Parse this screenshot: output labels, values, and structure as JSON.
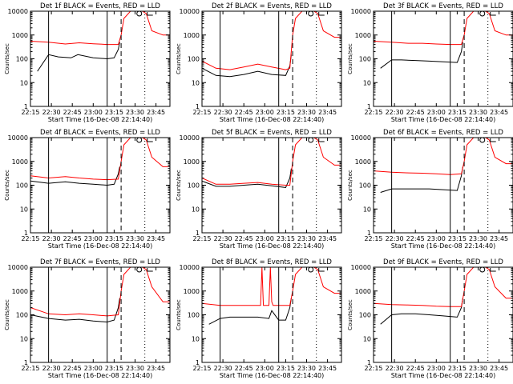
{
  "page": {
    "background": "#ffffff",
    "colors": {
      "axis": "#000000",
      "events": "#000000",
      "lld": "#ff0000"
    }
  },
  "chart_data": [
    {
      "type": "line",
      "title": "Det 1f BLACK = Events, RED = LLD",
      "xlabel": "Start Time (16-Dec-08 22:14:40)",
      "ylabel": "Counts/sec",
      "yscale": "log",
      "ylim": [
        1,
        10000
      ],
      "xlim": [
        "22:15",
        "23:55"
      ],
      "x_ticks": [
        "22:15",
        "22:30",
        "22:45",
        "23:00",
        "23:15",
        "23:30",
        "23:45"
      ],
      "y_ticks": [
        "1",
        "10",
        "100",
        "1000",
        "10000"
      ],
      "markers": [
        {
          "time": "22:28",
          "style": "solid"
        },
        {
          "time": "23:10",
          "style": "solid"
        },
        {
          "time": "23:20",
          "style": "dashed"
        },
        {
          "time": "23:37",
          "style": "dotted"
        }
      ],
      "series": [
        {
          "color": "#000000",
          "x": [
            "22:20",
            "22:28",
            "22:35",
            "22:44",
            "22:49",
            "23:00",
            "23:10",
            "23:15",
            "23:18",
            "23:19"
          ],
          "y": [
            30,
            150,
            120,
            110,
            150,
            110,
            100,
            110,
            250,
            500
          ]
        },
        {
          "color": "#ff0000",
          "x": [
            "22:15",
            "22:28",
            "22:40",
            "22:50",
            "23:00",
            "23:10",
            "23:18",
            "23:20",
            "23:22",
            "23:28",
            "23:33",
            "23:38",
            "23:42",
            "23:50",
            "23:55"
          ],
          "y": [
            550,
            500,
            420,
            470,
            430,
            400,
            400,
            1000,
            5000,
            12000,
            12000,
            8000,
            1500,
            1000,
            1000
          ]
        }
      ]
    },
    {
      "type": "line",
      "title": "Det 2f BLACK = Events, RED = LLD",
      "xlabel": "Start Time (16-Dec-08 22:14:40)",
      "ylabel": "Counts/sec",
      "yscale": "log",
      "ylim": [
        1,
        10000
      ],
      "xlim": [
        "22:15",
        "23:55"
      ],
      "x_ticks": [
        "22:15",
        "22:30",
        "22:45",
        "23:00",
        "23:15",
        "23:30",
        "23:45"
      ],
      "y_ticks": [
        "1",
        "10",
        "100",
        "1000",
        "10000"
      ],
      "markers": [
        {
          "time": "22:28",
          "style": "solid"
        },
        {
          "time": "23:10",
          "style": "solid"
        },
        {
          "time": "23:20",
          "style": "dashed"
        },
        {
          "time": "23:37",
          "style": "dotted"
        }
      ],
      "series": [
        {
          "color": "#000000",
          "x": [
            "22:15",
            "22:25",
            "22:35",
            "22:45",
            "22:55",
            "23:05",
            "23:15",
            "23:18",
            "23:19"
          ],
          "y": [
            40,
            20,
            18,
            22,
            30,
            22,
            20,
            50,
            150
          ]
        },
        {
          "color": "#ff0000",
          "x": [
            "22:15",
            "22:25",
            "22:35",
            "22:45",
            "22:55",
            "23:05",
            "23:15",
            "23:18",
            "23:20",
            "23:22",
            "23:28",
            "23:33",
            "23:38",
            "23:42",
            "23:50",
            "23:55"
          ],
          "y": [
            80,
            40,
            35,
            45,
            60,
            45,
            35,
            40,
            1000,
            5000,
            12000,
            12000,
            8000,
            1500,
            800,
            800
          ]
        }
      ]
    },
    {
      "type": "line",
      "title": "Det 3f BLACK = Events, RED = LLD",
      "xlabel": "Start Time (16-Dec-08 22:14:40)",
      "ylabel": "Counts/sec",
      "yscale": "log",
      "ylim": [
        1,
        10000
      ],
      "xlim": [
        "22:15",
        "23:55"
      ],
      "x_ticks": [
        "22:15",
        "22:30",
        "22:45",
        "23:00",
        "23:15",
        "23:30",
        "23:45"
      ],
      "y_ticks": [
        "1",
        "10",
        "100",
        "1000",
        "10000"
      ],
      "markers": [
        {
          "time": "22:28",
          "style": "solid"
        },
        {
          "time": "23:10",
          "style": "solid"
        },
        {
          "time": "23:20",
          "style": "dashed"
        },
        {
          "time": "23:37",
          "style": "dotted"
        }
      ],
      "series": [
        {
          "color": "#000000",
          "x": [
            "22:20",
            "22:28",
            "22:35",
            "22:45",
            "22:55",
            "23:05",
            "23:15",
            "23:18",
            "23:19"
          ],
          "y": [
            40,
            90,
            90,
            85,
            80,
            75,
            70,
            200,
            500
          ]
        },
        {
          "color": "#ff0000",
          "x": [
            "22:15",
            "22:28",
            "22:40",
            "22:50",
            "23:00",
            "23:10",
            "23:18",
            "23:20",
            "23:22",
            "23:28",
            "23:33",
            "23:38",
            "23:42",
            "23:50",
            "23:55"
          ],
          "y": [
            550,
            500,
            450,
            450,
            420,
            400,
            400,
            1000,
            5000,
            12000,
            12000,
            8000,
            1500,
            1000,
            1000
          ]
        }
      ]
    },
    {
      "type": "line",
      "title": "Det 4f BLACK = Events, RED = LLD",
      "xlabel": "Start Time (16-Dec-08 22:14:40)",
      "ylabel": "Counts/sec",
      "yscale": "log",
      "ylim": [
        1,
        10000
      ],
      "xlim": [
        "22:15",
        "23:55"
      ],
      "x_ticks": [
        "22:15",
        "22:30",
        "22:45",
        "23:00",
        "23:15",
        "23:30",
        "23:45"
      ],
      "y_ticks": [
        "1",
        "10",
        "100",
        "1000",
        "10000"
      ],
      "markers": [
        {
          "time": "22:28",
          "style": "solid"
        },
        {
          "time": "23:10",
          "style": "solid"
        },
        {
          "time": "23:20",
          "style": "dashed"
        },
        {
          "time": "23:37",
          "style": "dotted"
        }
      ],
      "series": [
        {
          "color": "#000000",
          "x": [
            "22:15",
            "22:28",
            "22:40",
            "22:50",
            "23:00",
            "23:10",
            "23:15",
            "23:18",
            "23:19"
          ],
          "y": [
            150,
            120,
            140,
            120,
            110,
            100,
            110,
            300,
            600
          ]
        },
        {
          "color": "#ff0000",
          "x": [
            "22:15",
            "22:28",
            "22:40",
            "22:50",
            "23:00",
            "23:10",
            "23:18",
            "23:20",
            "23:22",
            "23:28",
            "23:33",
            "23:38",
            "23:42",
            "23:50",
            "23:55"
          ],
          "y": [
            250,
            200,
            230,
            200,
            180,
            170,
            180,
            1000,
            5000,
            12000,
            12000,
            8000,
            1500,
            600,
            600
          ]
        }
      ]
    },
    {
      "type": "line",
      "title": "Det 5f BLACK = Events, RED = LLD",
      "xlabel": "Start Time (16-Dec-08 22:14:40)",
      "ylabel": "Counts/sec",
      "yscale": "log",
      "ylim": [
        1,
        10000
      ],
      "xlim": [
        "22:15",
        "23:55"
      ],
      "x_ticks": [
        "22:15",
        "22:30",
        "22:45",
        "23:00",
        "23:15",
        "23:30",
        "23:45"
      ],
      "y_ticks": [
        "1",
        "10",
        "100",
        "1000",
        "10000"
      ],
      "markers": [
        {
          "time": "23:10",
          "style": "solid"
        },
        {
          "time": "23:20",
          "style": "dashed"
        },
        {
          "time": "23:37",
          "style": "dotted"
        }
      ],
      "series": [
        {
          "color": "#000000",
          "x": [
            "22:15",
            "22:25",
            "22:35",
            "22:45",
            "22:55",
            "23:05",
            "23:15",
            "23:18",
            "23:19"
          ],
          "y": [
            150,
            90,
            90,
            100,
            110,
            95,
            80,
            200,
            500
          ]
        },
        {
          "color": "#ff0000",
          "x": [
            "22:15",
            "22:25",
            "22:35",
            "22:45",
            "22:55",
            "23:05",
            "23:15",
            "23:18",
            "23:20",
            "23:22",
            "23:28",
            "23:33",
            "23:38",
            "23:42",
            "23:50",
            "23:55"
          ],
          "y": [
            200,
            110,
            110,
            120,
            130,
            110,
            100,
            100,
            1000,
            5000,
            12000,
            12000,
            8000,
            1500,
            700,
            700
          ]
        }
      ]
    },
    {
      "type": "line",
      "title": "Det 6f BLACK = Events, RED = LLD",
      "xlabel": "Start Time (16-Dec-08 22:14:40)",
      "ylabel": "Counts/sec",
      "yscale": "log",
      "ylim": [
        1,
        10000
      ],
      "xlim": [
        "22:15",
        "23:55"
      ],
      "x_ticks": [
        "22:15",
        "22:30",
        "22:45",
        "23:00",
        "23:15",
        "23:30",
        "23:45"
      ],
      "y_ticks": [
        "1",
        "10",
        "100",
        "1000",
        "10000"
      ],
      "markers": [
        {
          "time": "22:28",
          "style": "solid"
        },
        {
          "time": "23:10",
          "style": "solid"
        },
        {
          "time": "23:20",
          "style": "dashed"
        },
        {
          "time": "23:37",
          "style": "dotted"
        }
      ],
      "series": [
        {
          "color": "#000000",
          "x": [
            "22:20",
            "22:28",
            "22:35",
            "22:45",
            "22:55",
            "23:05",
            "23:15",
            "23:18",
            "23:19"
          ],
          "y": [
            50,
            70,
            70,
            70,
            70,
            65,
            60,
            250,
            600
          ]
        },
        {
          "color": "#ff0000",
          "x": [
            "22:15",
            "22:28",
            "22:40",
            "22:50",
            "23:00",
            "23:10",
            "23:18",
            "23:20",
            "23:22",
            "23:28",
            "23:33",
            "23:38",
            "23:42",
            "23:50",
            "23:55"
          ],
          "y": [
            400,
            350,
            330,
            320,
            300,
            280,
            300,
            1000,
            5000,
            12000,
            12000,
            8000,
            1500,
            800,
            800
          ]
        }
      ]
    },
    {
      "type": "line",
      "title": "Det 7f BLACK = Events, RED = LLD",
      "xlabel": "Start Time (16-Dec-08 22:14:40)",
      "ylabel": "Counts/sec",
      "yscale": "log",
      "ylim": [
        1,
        10000
      ],
      "xlim": [
        "22:15",
        "23:55"
      ],
      "x_ticks": [
        "22:15",
        "22:30",
        "22:45",
        "23:00",
        "23:15",
        "23:30",
        "23:45"
      ],
      "y_ticks": [
        "1",
        "10",
        "100",
        "1000",
        "10000"
      ],
      "markers": [
        {
          "time": "22:28",
          "style": "solid"
        },
        {
          "time": "23:10",
          "style": "solid"
        },
        {
          "time": "23:20",
          "style": "dashed"
        },
        {
          "time": "23:37",
          "style": "dotted"
        }
      ],
      "series": [
        {
          "color": "#000000",
          "x": [
            "22:15",
            "22:28",
            "22:40",
            "22:50",
            "23:00",
            "23:10",
            "23:15",
            "23:18",
            "23:19"
          ],
          "y": [
            100,
            70,
            60,
            65,
            55,
            50,
            60,
            200,
            500
          ]
        },
        {
          "color": "#ff0000",
          "x": [
            "22:15",
            "22:28",
            "22:40",
            "22:50",
            "23:00",
            "23:10",
            "23:18",
            "23:20",
            "23:22",
            "23:28",
            "23:33",
            "23:38",
            "23:42",
            "23:50",
            "23:55"
          ],
          "y": [
            200,
            110,
            100,
            110,
            100,
            90,
            100,
            1000,
            5000,
            12000,
            12000,
            8000,
            1500,
            350,
            350
          ]
        }
      ]
    },
    {
      "type": "line",
      "title": "Det 8f BLACK = Events, RED = LLD",
      "xlabel": "Start Time (16-Dec-08 22:14:40)",
      "ylabel": "Counts/sec",
      "yscale": "log",
      "ylim": [
        1,
        10000
      ],
      "xlim": [
        "22:15",
        "23:55"
      ],
      "x_ticks": [
        "22:15",
        "22:30",
        "22:45",
        "23:00",
        "23:15",
        "23:30",
        "23:45"
      ],
      "y_ticks": [
        "1",
        "10",
        "100",
        "1000",
        "10000"
      ],
      "markers": [
        {
          "time": "22:28",
          "style": "solid"
        },
        {
          "time": "23:10",
          "style": "solid"
        },
        {
          "time": "23:20",
          "style": "dashed"
        },
        {
          "time": "23:37",
          "style": "dotted"
        }
      ],
      "series": [
        {
          "color": "#000000",
          "x": [
            "22:20",
            "22:28",
            "22:35",
            "22:45",
            "22:55",
            "23:03",
            "23:05",
            "23:10",
            "23:15",
            "23:18",
            "23:19"
          ],
          "y": [
            40,
            70,
            80,
            80,
            80,
            70,
            150,
            60,
            60,
            200,
            500
          ]
        },
        {
          "color": "#ff0000",
          "x": [
            "22:15",
            "22:28",
            "22:40",
            "22:50",
            "22:57",
            "22:58",
            "22:59",
            "23:03",
            "23:04",
            "23:05",
            "23:06",
            "23:10",
            "23:18",
            "23:20",
            "23:22",
            "23:28",
            "23:33",
            "23:38",
            "23:42",
            "23:50",
            "23:55"
          ],
          "y": [
            300,
            250,
            250,
            250,
            250,
            10000,
            250,
            250,
            10000,
            350,
            250,
            250,
            250,
            1000,
            5000,
            12000,
            12000,
            8000,
            1500,
            800,
            800
          ]
        }
      ]
    },
    {
      "type": "line",
      "title": "Det 9f BLACK = Events, RED = LLD",
      "xlabel": "Start Time (16-Dec-08 22:14:40)",
      "ylabel": "Counts/sec",
      "yscale": "log",
      "ylim": [
        1,
        10000
      ],
      "xlim": [
        "22:15",
        "23:55"
      ],
      "x_ticks": [
        "22:15",
        "22:30",
        "22:45",
        "23:00",
        "23:15",
        "23:30",
        "23:45"
      ],
      "y_ticks": [
        "1",
        "10",
        "100",
        "1000",
        "10000"
      ],
      "markers": [
        {
          "time": "22:28",
          "style": "solid"
        },
        {
          "time": "23:10",
          "style": "solid"
        },
        {
          "time": "23:20",
          "style": "dashed"
        },
        {
          "time": "23:37",
          "style": "dotted"
        }
      ],
      "series": [
        {
          "color": "#000000",
          "x": [
            "22:20",
            "22:28",
            "22:35",
            "22:45",
            "22:55",
            "23:05",
            "23:15",
            "23:18",
            "23:19"
          ],
          "y": [
            40,
            100,
            110,
            110,
            100,
            90,
            80,
            200,
            500
          ]
        },
        {
          "color": "#ff0000",
          "x": [
            "22:15",
            "22:28",
            "22:40",
            "22:50",
            "23:00",
            "23:10",
            "23:18",
            "23:20",
            "23:22",
            "23:28",
            "23:33",
            "23:38",
            "23:42",
            "23:50",
            "23:55"
          ],
          "y": [
            300,
            270,
            260,
            250,
            230,
            220,
            220,
            1000,
            5000,
            12000,
            12000,
            8000,
            1500,
            500,
            500
          ]
        }
      ]
    }
  ]
}
